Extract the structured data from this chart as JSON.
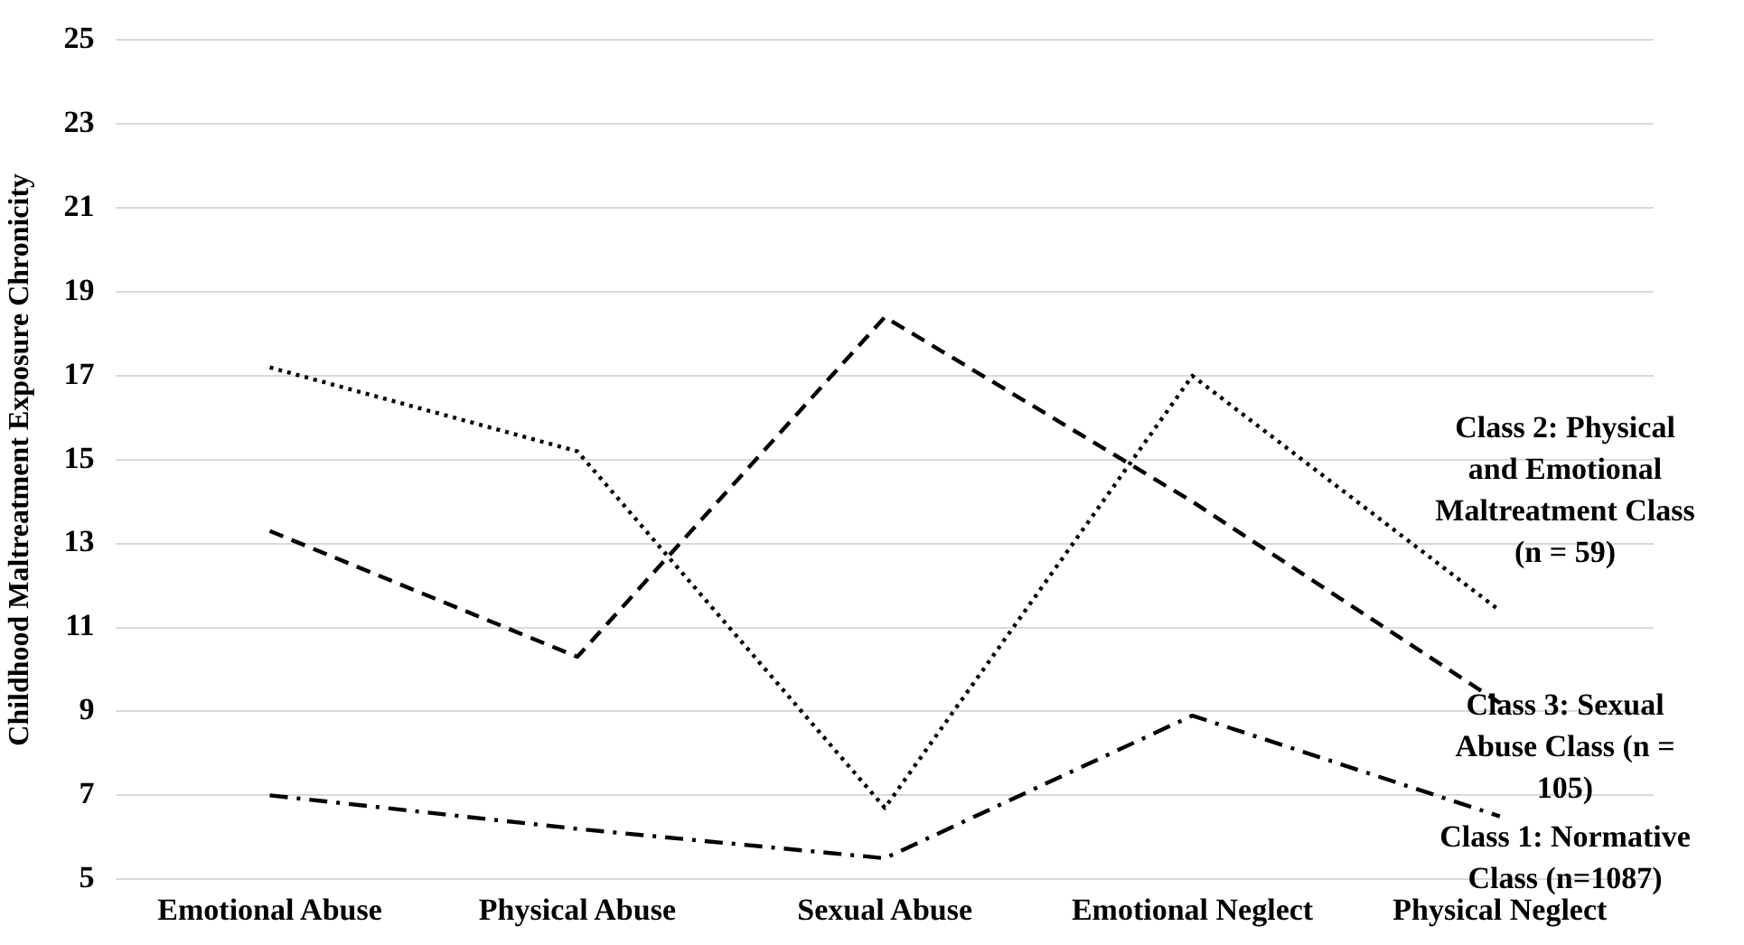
{
  "chart_data": {
    "type": "line",
    "ylabel": "Childhood Maltreatment Exposure Chronicity",
    "categories": [
      "Emotional Abuse",
      "Physical Abuse",
      "Sexual Abuse",
      "Emotional Neglect",
      "Physical Neglect"
    ],
    "series": [
      {
        "name": "Class 2: Physical and Emotional Maltreatment Class (n = 59)",
        "color": "#000000",
        "line_style": "dotted",
        "values": [
          17.2,
          15.2,
          6.7,
          17.0,
          11.4
        ]
      },
      {
        "name": "Class 3: Sexual Abuse Class (n = 105)",
        "color": "#000000",
        "line_style": "dashed",
        "values": [
          13.3,
          10.3,
          18.4,
          14.0,
          9.2
        ]
      },
      {
        "name": "Class 1: Normative Class (n=1087)",
        "color": "#000000",
        "line_style": "dashdot",
        "values": [
          7.0,
          6.2,
          5.5,
          8.9,
          6.5
        ]
      }
    ],
    "ylim": [
      5,
      25
    ],
    "yticks": [
      5,
      7,
      9,
      11,
      13,
      15,
      17,
      19,
      21,
      23,
      25
    ],
    "grid": "y",
    "legend": false,
    "marker": "none"
  }
}
